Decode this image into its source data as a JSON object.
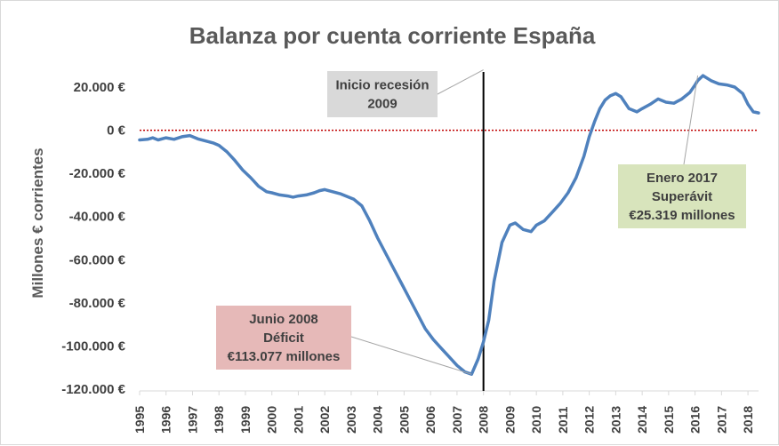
{
  "chart_data": {
    "type": "line",
    "title": "Balanza por cuenta corriente España",
    "xlabel": "",
    "ylabel": "Millones € corrientes",
    "xlim": [
      1995,
      2018.4
    ],
    "ylim": [
      -120000,
      30000
    ],
    "yticks": [
      {
        "value": 20000,
        "label": "20.000 €"
      },
      {
        "value": 0,
        "label": "0 €"
      },
      {
        "value": -20000,
        "label": "-20.000 €"
      },
      {
        "value": -40000,
        "label": "-40.000 €"
      },
      {
        "value": -60000,
        "label": "-60.000 €"
      },
      {
        "value": -80000,
        "label": "-80.000 €"
      },
      {
        "value": -100000,
        "label": "-100.000 €"
      },
      {
        "value": -120000,
        "label": "-120.000 €"
      }
    ],
    "xticks": [
      "1995",
      "1996",
      "1997",
      "1998",
      "1999",
      "2000",
      "2001",
      "2002",
      "2003",
      "2004",
      "2005",
      "2006",
      "2007",
      "2008",
      "2009",
      "2010",
      "2011",
      "2012",
      "2013",
      "2014",
      "2015",
      "2016",
      "2017",
      "2018"
    ],
    "zero_line": {
      "value": 0,
      "color": "#c00000",
      "style": "dotted"
    },
    "vertical_line": {
      "x": 2008.0,
      "color": "#000000"
    },
    "series": [
      {
        "name": "Balanza por cuenta corriente",
        "color": "#4f81bd",
        "x": [
          1995.0,
          1995.3,
          1995.5,
          1995.7,
          1996.0,
          1996.3,
          1996.6,
          1996.9,
          1997.2,
          1997.5,
          1997.8,
          1998.0,
          1998.3,
          1998.6,
          1998.9,
          1999.2,
          1999.5,
          1999.8,
          2000.0,
          2000.3,
          2000.6,
          2000.8,
          2001.0,
          2001.3,
          2001.6,
          2001.8,
          2002.0,
          2002.3,
          2002.6,
          2002.9,
          2003.1,
          2003.4,
          2003.7,
          2004.0,
          2004.3,
          2004.6,
          2004.9,
          2005.2,
          2005.5,
          2005.8,
          2006.1,
          2006.4,
          2006.7,
          2007.0,
          2007.3,
          2007.55,
          2007.8,
          2008.0,
          2008.2,
          2008.4,
          2008.7,
          2009.0,
          2009.2,
          2009.5,
          2009.8,
          2010.0,
          2010.3,
          2010.6,
          2010.9,
          2011.2,
          2011.5,
          2011.8,
          2012.0,
          2012.2,
          2012.4,
          2012.6,
          2012.8,
          2013.0,
          2013.2,
          2013.5,
          2013.8,
          2014.0,
          2014.3,
          2014.6,
          2014.9,
          2015.2,
          2015.5,
          2015.8,
          2016.0,
          2016.1,
          2016.3,
          2016.6,
          2016.9,
          2017.2,
          2017.5,
          2017.8,
          2018.0,
          2018.2,
          2018.4
        ],
        "values": [
          -4500,
          -4200,
          -3500,
          -4500,
          -3500,
          -4200,
          -3000,
          -2500,
          -4000,
          -5000,
          -6000,
          -7000,
          -10000,
          -14000,
          -18500,
          -22000,
          -26000,
          -28500,
          -29000,
          -30000,
          -30500,
          -31000,
          -30500,
          -30000,
          -29000,
          -28000,
          -27500,
          -28500,
          -29500,
          -31000,
          -32000,
          -35000,
          -42000,
          -50000,
          -57000,
          -64000,
          -71000,
          -78000,
          -85000,
          -92000,
          -97000,
          -101000,
          -105000,
          -109000,
          -112000,
          -113077,
          -106000,
          -98000,
          -88000,
          -70000,
          -52000,
          -44000,
          -43000,
          -46000,
          -47000,
          -44000,
          -42000,
          -38000,
          -34000,
          -29000,
          -22000,
          -12000,
          -3000,
          4000,
          10000,
          14000,
          16000,
          17000,
          15500,
          10000,
          8500,
          10000,
          12000,
          14500,
          13000,
          12500,
          14500,
          17500,
          21000,
          23000,
          25319,
          23000,
          21500,
          21000,
          20000,
          17000,
          12000,
          8500,
          8000
        ]
      }
    ],
    "annotations": [
      {
        "id": "recesion",
        "lines": [
          "Inicio recesión",
          "2009"
        ],
        "bg": "#d9d9d9",
        "points_to": {
          "x": 2008.0,
          "y": 28000
        }
      },
      {
        "id": "superavit",
        "lines": [
          "Enero 2017",
          "Superávit",
          "€25.319 millones"
        ],
        "bg": "#d8e4bc",
        "points_to": {
          "x": 2016.1,
          "y": 25319
        }
      },
      {
        "id": "deficit",
        "lines": [
          "Junio 2008",
          "Déficit",
          "€113.077 millones"
        ],
        "bg": "#e6b9b8",
        "points_to": {
          "x": 2007.55,
          "y": -113077
        }
      }
    ]
  }
}
